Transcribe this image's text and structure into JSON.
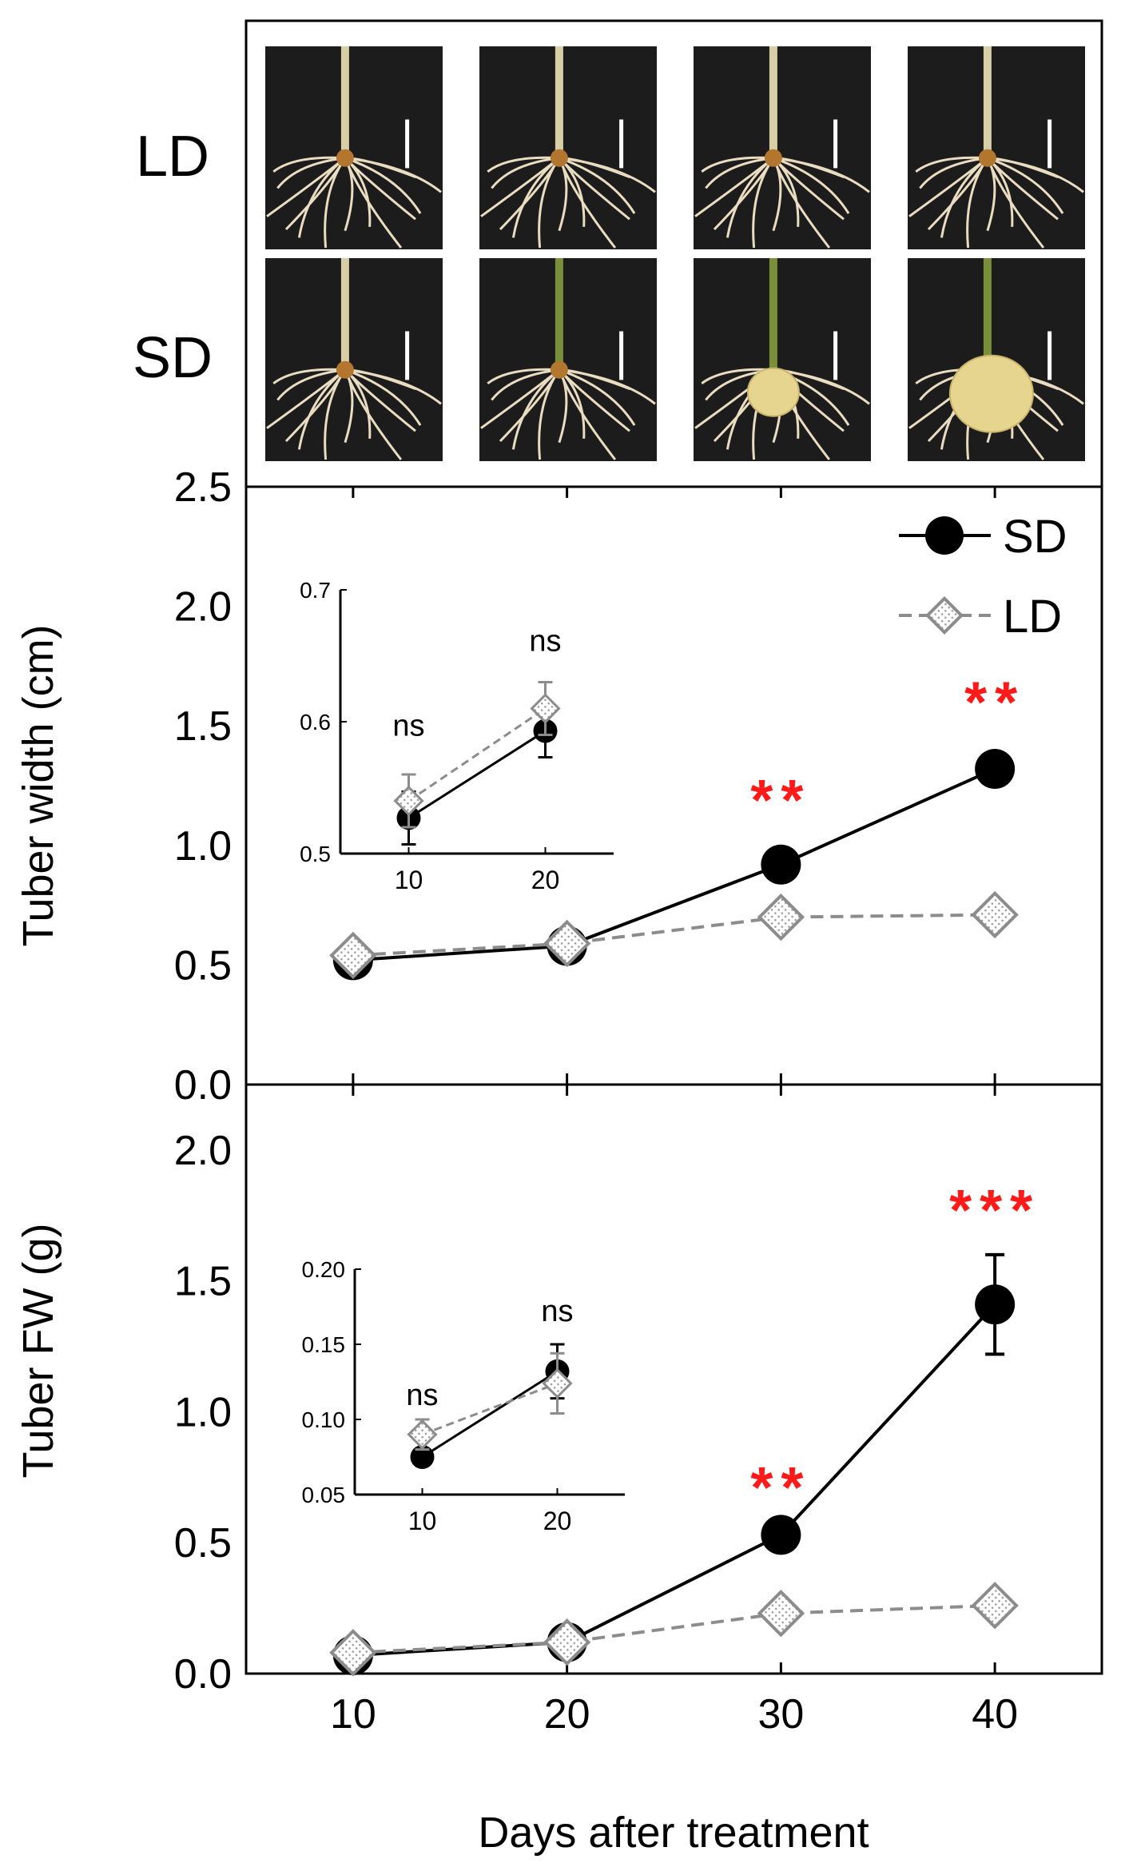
{
  "photo_panel": {
    "row_labels": [
      "LD",
      "SD"
    ],
    "photos": [
      {
        "row": "LD",
        "day": 10,
        "tuber": "none"
      },
      {
        "row": "LD",
        "day": 20,
        "tuber": "none"
      },
      {
        "row": "LD",
        "day": 30,
        "tuber": "none"
      },
      {
        "row": "LD",
        "day": 40,
        "tuber": "none"
      },
      {
        "row": "SD",
        "day": 10,
        "tuber": "none"
      },
      {
        "row": "SD",
        "day": 20,
        "tuber": "none"
      },
      {
        "row": "SD",
        "day": 30,
        "tuber": "small"
      },
      {
        "row": "SD",
        "day": 40,
        "tuber": "large"
      }
    ]
  },
  "colors": {
    "sd": "#000000",
    "ld": "#8c8c8c",
    "significance": "#ff1a1a",
    "frame": "#000000",
    "photo_bg": "#1c1c1c",
    "root": "#e9dcc0",
    "tuber": "#e6d58f"
  },
  "chart_data": [
    {
      "type": "line",
      "id": "width-main",
      "title": "",
      "xlabel": "Days after treatment",
      "ylabel": "Tuber width (cm)",
      "xlim": [
        5,
        45
      ],
      "ylim": [
        0,
        2.5
      ],
      "x": [
        10,
        20,
        30,
        40
      ],
      "xticks": [
        10,
        20,
        30,
        40
      ],
      "yticks": [
        "0.0",
        "0.5",
        "1.0",
        "1.5",
        "2.0",
        "2.5"
      ],
      "series": [
        {
          "name": "SD",
          "values": [
            0.52,
            0.58,
            0.92,
            1.32
          ],
          "errors": [
            0.02,
            0.03,
            0.03,
            0.05
          ]
        },
        {
          "name": "LD",
          "values": [
            0.54,
            0.59,
            0.7,
            0.71
          ],
          "errors": [
            0.02,
            0.02,
            0.02,
            0.02
          ]
        }
      ],
      "annotations": [
        {
          "x": 30,
          "y": 1.2,
          "text": "**"
        },
        {
          "x": 40,
          "y": 1.61,
          "text": "**"
        }
      ],
      "legend": {
        "position": "top-right",
        "entries": [
          "SD",
          "LD"
        ]
      },
      "inset": {
        "type": "line",
        "xlim": [
          5,
          25
        ],
        "ylim": [
          0.5,
          0.7
        ],
        "x": [
          10,
          20
        ],
        "xticks": [
          "10",
          "20"
        ],
        "yticks": [
          "0.5",
          "0.6",
          "0.7"
        ],
        "series": [
          {
            "name": "SD",
            "values": [
              0.527,
              0.593
            ],
            "errors": [
              0.02,
              0.02
            ]
          },
          {
            "name": "LD",
            "values": [
              0.54,
              0.61
            ],
            "errors": [
              0.02,
              0.02
            ]
          }
        ],
        "annotations": [
          {
            "x": 10,
            "y": 0.598,
            "text": "ns"
          },
          {
            "x": 20,
            "y": 0.662,
            "text": "ns"
          }
        ]
      }
    },
    {
      "type": "line",
      "id": "fw-main",
      "title": "",
      "xlabel": "Days after treatment",
      "ylabel": "Tuber FW (g)",
      "xlim": [
        5,
        45
      ],
      "ylim": [
        0,
        2.25
      ],
      "x": [
        10,
        20,
        30,
        40
      ],
      "xticks": [
        10,
        20,
        30,
        40
      ],
      "yticks": [
        "0.0",
        "0.5",
        "1.0",
        "1.5",
        "2.0"
      ],
      "series": [
        {
          "name": "SD",
          "values": [
            0.07,
            0.12,
            0.53,
            1.41
          ],
          "errors": [
            0.01,
            0.02,
            0.04,
            0.19
          ]
        },
        {
          "name": "LD",
          "values": [
            0.08,
            0.12,
            0.23,
            0.26
          ],
          "errors": [
            0.01,
            0.01,
            0.02,
            0.03
          ]
        }
      ],
      "annotations": [
        {
          "x": 30,
          "y": 0.72,
          "text": "**"
        },
        {
          "x": 40,
          "y": 1.78,
          "text": "***"
        }
      ],
      "inset": {
        "type": "line",
        "xlim": [
          5,
          25
        ],
        "ylim": [
          0.05,
          0.2
        ],
        "x": [
          10,
          20
        ],
        "xticks": [
          "10",
          "20"
        ],
        "yticks": [
          "0.05",
          "0.10",
          "0.15",
          "0.20"
        ],
        "series": [
          {
            "name": "SD",
            "values": [
              0.075,
              0.132
            ],
            "errors": [
              0.005,
              0.018
            ]
          },
          {
            "name": "LD",
            "values": [
              0.09,
              0.124
            ],
            "errors": [
              0.01,
              0.02
            ]
          }
        ],
        "annotations": [
          {
            "x": 10,
            "y": 0.117,
            "text": "ns"
          },
          {
            "x": 20,
            "y": 0.173,
            "text": "ns"
          }
        ]
      }
    }
  ]
}
